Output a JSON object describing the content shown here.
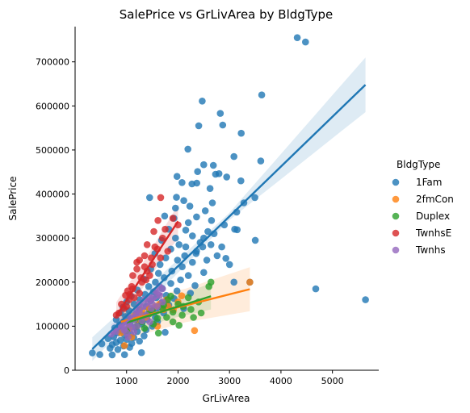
{
  "chart_data": {
    "type": "scatter",
    "title": "SalePrice vs GrLivArea by BldgType",
    "xlabel": "GrLivArea",
    "ylabel": "SalePrice",
    "xlim": [
      0,
      5900
    ],
    "ylim": [
      0,
      780000
    ],
    "xticks": [
      1000,
      2000,
      3000,
      4000,
      5000
    ],
    "yticks": [
      0,
      100000,
      200000,
      300000,
      400000,
      500000,
      600000,
      700000
    ],
    "grid": false,
    "legend": {
      "title": "BldgType",
      "placement": "right"
    },
    "series": [
      {
        "name": "1Fam",
        "color": "#1f77b4",
        "points": [
          [
            4316,
            755000
          ],
          [
            4476,
            745000
          ],
          [
            2470,
            611000
          ],
          [
            3627,
            625000
          ],
          [
            2822,
            582933
          ],
          [
            2868,
            556581
          ],
          [
            2402,
            555000
          ],
          [
            3228,
            538000
          ],
          [
            2192,
            501837
          ],
          [
            3086,
            485000
          ],
          [
            3608,
            475000
          ],
          [
            2500,
            466500
          ],
          [
            2687,
            465000
          ],
          [
            2380,
            451000
          ],
          [
            2796,
            446261
          ],
          [
            2728,
            445000
          ],
          [
            1980,
            440000
          ],
          [
            2945,
            438780
          ],
          [
            2078,
            426000
          ],
          [
            3222,
            430000
          ],
          [
            2270,
            423000
          ],
          [
            2364,
            424870
          ],
          [
            2622,
            412500
          ],
          [
            3493,
            392000
          ],
          [
            1970,
            392500
          ],
          [
            1448,
            392000
          ],
          [
            2112,
            385000
          ],
          [
            2668,
            380000
          ],
          [
            3279,
            380000
          ],
          [
            2230,
            372500
          ],
          [
            1950,
            368000
          ],
          [
            2530,
            361919
          ],
          [
            3140,
            359100
          ],
          [
            1740,
            350000
          ],
          [
            2360,
            348000
          ],
          [
            1920,
            345000
          ],
          [
            2650,
            340000
          ],
          [
            2200,
            335000
          ],
          [
            1820,
            320000
          ],
          [
            2150,
            318000
          ],
          [
            3150,
            319000
          ],
          [
            2580,
            315000
          ],
          [
            3500,
            295000
          ],
          [
            1680,
            295000
          ],
          [
            2430,
            290000
          ],
          [
            2020,
            285000
          ],
          [
            2850,
            280000
          ],
          [
            1860,
            275000
          ],
          [
            2360,
            270000
          ],
          [
            1550,
            265000
          ],
          [
            2130,
            260000
          ],
          [
            1760,
            255000
          ],
          [
            2930,
            254000
          ],
          [
            1990,
            250000
          ],
          [
            2280,
            245000
          ],
          [
            1650,
            240000
          ],
          [
            3000,
            240000
          ],
          [
            2080,
            235000
          ],
          [
            1470,
            230000
          ],
          [
            1880,
            225000
          ],
          [
            2500,
            222000
          ],
          [
            1620,
            220000
          ],
          [
            2200,
            215000
          ],
          [
            1730,
            210000
          ],
          [
            1340,
            207000
          ],
          [
            2050,
            205000
          ],
          [
            1560,
            200000
          ],
          [
            1860,
            197000
          ],
          [
            2330,
            192000
          ],
          [
            1430,
            190000
          ],
          [
            1690,
            186000
          ],
          [
            1210,
            182000
          ],
          [
            1980,
            180000
          ],
          [
            1520,
            178000
          ],
          [
            2240,
            175000
          ],
          [
            1360,
            172000
          ],
          [
            1770,
            170000
          ],
          [
            1090,
            168000
          ],
          [
            1580,
            165000
          ],
          [
            1920,
            163000
          ],
          [
            1260,
            160000
          ],
          [
            1470,
            158000
          ],
          [
            1000,
            155000
          ],
          [
            1680,
            153000
          ],
          [
            1150,
            150000
          ],
          [
            1820,
            148000
          ],
          [
            1380,
            145000
          ],
          [
            930,
            143000
          ],
          [
            1590,
            140000
          ],
          [
            1250,
            138000
          ],
          [
            2110,
            140000
          ],
          [
            1050,
            135000
          ],
          [
            1440,
            133000
          ],
          [
            880,
            130000
          ],
          [
            1720,
            130000
          ],
          [
            1180,
            128000
          ],
          [
            1320,
            125000
          ],
          [
            980,
            122000
          ],
          [
            1560,
            120000
          ],
          [
            1100,
            118000
          ],
          [
            800,
            115000
          ],
          [
            1400,
            115000
          ],
          [
            1230,
            112000
          ],
          [
            940,
            110000
          ],
          [
            1600,
            110000
          ],
          [
            1060,
            106000
          ],
          [
            1300,
            105000
          ],
          [
            860,
            102000
          ],
          [
            1500,
            100000
          ],
          [
            1160,
            98000
          ],
          [
            770,
            96000
          ],
          [
            1030,
            94000
          ],
          [
            1380,
            92000
          ],
          [
            900,
            90000
          ],
          [
            1210,
            88000
          ],
          [
            1750,
            86000
          ],
          [
            830,
            85000
          ],
          [
            1080,
            82000
          ],
          [
            960,
            80000
          ],
          [
            1340,
            78000
          ],
          [
            750,
            76000
          ],
          [
            1140,
            74000
          ],
          [
            1000,
            70000
          ],
          [
            880,
            68000
          ],
          [
            1250,
            66000
          ],
          [
            800,
            63000
          ],
          [
            1100,
            61000
          ],
          [
            720,
            58000
          ],
          [
            940,
            55000
          ],
          [
            1060,
            52000
          ],
          [
            680,
            50000
          ],
          [
            830,
            47000
          ],
          [
            1290,
            40000
          ],
          [
            480,
            35500
          ],
          [
            334,
            39300
          ],
          [
            720,
            35000
          ],
          [
            960,
            35300
          ],
          [
            520,
            60000
          ],
          [
            640,
            72000
          ],
          [
            2500,
            300000
          ],
          [
            2700,
            310000
          ],
          [
            2900,
            330000
          ],
          [
            3100,
            320000
          ],
          [
            2280,
            305000
          ],
          [
            2640,
            285000
          ],
          [
            2350,
            265000
          ],
          [
            2760,
            260000
          ],
          [
            2560,
            250000
          ],
          [
            2150,
            280000
          ],
          [
            1950,
            300000
          ],
          [
            2480,
            280000
          ],
          [
            4676,
            184750
          ],
          [
            5642,
            160000
          ],
          [
            3086,
            200000
          ],
          [
            3395,
            200000
          ]
        ]
      },
      {
        "name": "2fmCon",
        "color": "#ff7f0e",
        "points": [
          [
            1440,
            140000
          ],
          [
            1776,
            160000
          ],
          [
            1300,
            135000
          ],
          [
            1150,
            124000
          ],
          [
            2072,
            169000
          ],
          [
            1640,
            150000
          ],
          [
            1910,
            137000
          ],
          [
            890,
            85000
          ],
          [
            1200,
            115000
          ],
          [
            1380,
            120000
          ],
          [
            1050,
            95000
          ],
          [
            2320,
            90000
          ],
          [
            3395,
            200000
          ],
          [
            1560,
            145000
          ],
          [
            960,
            56000
          ],
          [
            1720,
            137500
          ],
          [
            1250,
            128000
          ],
          [
            1600,
            100000
          ],
          [
            1100,
            75000
          ],
          [
            2000,
            155000
          ],
          [
            1480,
            131000
          ],
          [
            1810,
            145000
          ]
        ]
      },
      {
        "name": "Duplex",
        "color": "#2ca02c",
        "points": [
          [
            1800,
            160000
          ],
          [
            2000,
            150000
          ],
          [
            1700,
            140000
          ],
          [
            2200,
            165000
          ],
          [
            1900,
            132000
          ],
          [
            1600,
            118000
          ],
          [
            2400,
            155000
          ],
          [
            1200,
            100000
          ],
          [
            1500,
            135000
          ],
          [
            2080,
            125000
          ],
          [
            1300,
            110000
          ],
          [
            2600,
            190000
          ],
          [
            2640,
            200000
          ],
          [
            1440,
            128000
          ],
          [
            1780,
            120000
          ],
          [
            2100,
            145000
          ],
          [
            1000,
            90000
          ],
          [
            1350,
            95000
          ],
          [
            2250,
            138000
          ],
          [
            1900,
            110000
          ],
          [
            1620,
            84500
          ],
          [
            2020,
            102000
          ],
          [
            1720,
            148000
          ],
          [
            2450,
            130000
          ],
          [
            1160,
            115000
          ],
          [
            1860,
            168000
          ],
          [
            2300,
            120000
          ],
          [
            1520,
            105000
          ]
        ]
      },
      {
        "name": "TwnhsE",
        "color": "#d62728",
        "points": [
          [
            1664,
            392000
          ],
          [
            1250,
            250000
          ],
          [
            1610,
            340000
          ],
          [
            1530,
            315000
          ],
          [
            1400,
            285000
          ],
          [
            1700,
            300000
          ],
          [
            1200,
            230000
          ],
          [
            1350,
            260000
          ],
          [
            1450,
            215000
          ],
          [
            1100,
            190000
          ],
          [
            980,
            170000
          ],
          [
            1050,
            160000
          ],
          [
            1500,
            240000
          ],
          [
            1600,
            275000
          ],
          [
            1300,
            200000
          ],
          [
            1120,
            185000
          ],
          [
            1400,
            225000
          ],
          [
            900,
            150000
          ],
          [
            1000,
            145000
          ],
          [
            1250,
            175000
          ],
          [
            1550,
            280000
          ],
          [
            1800,
            270000
          ],
          [
            1150,
            165000
          ],
          [
            1380,
            205000
          ],
          [
            950,
            140000
          ],
          [
            1280,
            210000
          ],
          [
            1480,
            255000
          ],
          [
            1660,
            255000
          ],
          [
            1200,
            245000
          ],
          [
            1060,
            172000
          ],
          [
            850,
            130000
          ],
          [
            1350,
            235000
          ],
          [
            2000,
            330000
          ],
          [
            1750,
            320000
          ],
          [
            1900,
            345000
          ],
          [
            1020,
            180000
          ],
          [
            1120,
            215000
          ],
          [
            800,
            125000
          ]
        ]
      },
      {
        "name": "Twnhs",
        "color": "#9467bd",
        "points": [
          [
            1560,
            180000
          ],
          [
            1000,
            110000
          ],
          [
            1450,
            165000
          ],
          [
            1600,
            175000
          ],
          [
            1200,
            137000
          ],
          [
            1080,
            120000
          ],
          [
            1350,
            160000
          ],
          [
            1500,
            150000
          ],
          [
            900,
            100000
          ],
          [
            1250,
            130000
          ],
          [
            1700,
            185000
          ],
          [
            1150,
            115000
          ],
          [
            960,
            95000
          ],
          [
            1320,
            145000
          ],
          [
            1640,
            170000
          ],
          [
            1420,
            155000
          ],
          [
            1050,
            105000
          ],
          [
            800,
            88000
          ],
          [
            1180,
            128000
          ],
          [
            1480,
            140000
          ],
          [
            1300,
            112000
          ],
          [
            1000,
            85000
          ],
          [
            1700,
            155000
          ],
          [
            1100,
            98000
          ],
          [
            1500,
            165000
          ],
          [
            1640,
            190000
          ],
          [
            1250,
            150000
          ],
          [
            700,
            82000
          ],
          [
            950,
            91000
          ],
          [
            1380,
            125000
          ],
          [
            1140,
            87000
          ],
          [
            1600,
            145000
          ],
          [
            1200,
            100000
          ],
          [
            1030,
            75000
          ],
          [
            1450,
            110000
          ]
        ]
      }
    ],
    "regression_lines": [
      {
        "series": "1Fam",
        "x": [
          334,
          5642
        ],
        "y": [
          48000,
          648000
        ],
        "ci_halfwidth": [
          8000,
          62000
        ]
      },
      {
        "series": "2fmCon",
        "x": [
          890,
          3395
        ],
        "y": [
          110000,
          184000
        ],
        "ci_halfwidth": [
          38000,
          50000
        ]
      },
      {
        "series": "Duplex",
        "x": [
          1000,
          2640
        ],
        "y": [
          108000,
          168000
        ],
        "ci_halfwidth": [
          22000,
          30000
        ]
      },
      {
        "series": "TwnhsE",
        "x": [
          800,
          2000
        ],
        "y": [
          123000,
          338000
        ],
        "ci_halfwidth": [
          28000,
          38000
        ]
      },
      {
        "series": "Twnhs",
        "x": [
          700,
          1700
        ],
        "y": [
          82000,
          175000
        ],
        "ci_halfwidth": [
          20000,
          25000
        ]
      }
    ]
  }
}
